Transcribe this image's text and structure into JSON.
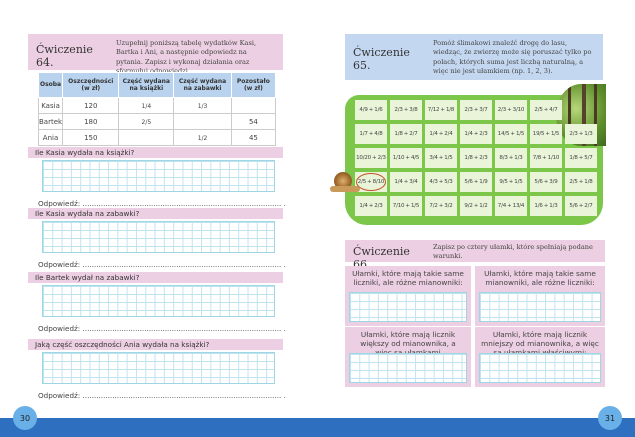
{
  "left": {
    "exercise": {
      "title": "Ćwiczenie 64.",
      "text": "Uzupełnij poniższą tabelę wydatków Kasi, Bartka i Ani, a następnie odpowiedz na pytania. Zapisz i wykonaj działania oraz sformułuj odpowiedzi."
    },
    "table": {
      "headers": [
        "Osoba",
        "Oszczędności (w zł)",
        "Część wydana na książki",
        "Część wydana na zabawki",
        "Pozostało (w zł)"
      ],
      "rows": [
        [
          "Kasia",
          "120",
          "1/4",
          "1/3",
          ""
        ],
        [
          "Bartek",
          "180",
          "2/5",
          "",
          "54"
        ],
        [
          "Ania",
          "150",
          "",
          "1/2",
          "45"
        ]
      ]
    },
    "questions": [
      "Ile Kasia wydała na książki?",
      "Ile Kasia wydała na zabawki?",
      "Ile Bartek wydał na zabawki?",
      "Jaką część oszczędności Ania wydała na książki?"
    ],
    "answer_label": "Odpowiedź: ....................................................................................... .",
    "page_number": "30"
  },
  "right": {
    "exercise65": {
      "title": "Ćwiczenie 65.",
      "text": "Pomóż ślimakowi znaleźć drogę do lasu, wiedząc, że zwierzę może się poruszać tylko po polach, których suma jest liczbą naturalną, a więc nie jest ułamkiem (np. 1, 2, 3)."
    },
    "maze": [
      [
        [
          "4/9",
          "1/6"
        ],
        [
          "2/3",
          "3/8"
        ],
        [
          "7/12",
          "1/8"
        ],
        [
          "2/3",
          "3/7"
        ],
        [
          "2/3",
          "3/10"
        ],
        [
          "2/5",
          "4/7"
        ]
      ],
      [
        [
          "1/7",
          "4/8"
        ],
        [
          "1/8",
          "2/7"
        ],
        [
          "1/4",
          "2/4"
        ],
        [
          "1/4",
          "2/3"
        ],
        [
          "14/5",
          "1/5"
        ],
        [
          "19/5",
          "1/5"
        ],
        [
          "2/3",
          "1/3"
        ]
      ],
      [
        [
          "10/20",
          "2/3"
        ],
        [
          "1/10",
          "4/5"
        ],
        [
          "3/4",
          "1/5"
        ],
        [
          "1/8",
          "2/3"
        ],
        [
          "8/3",
          "1/3"
        ],
        [
          "7/8",
          "1/10"
        ],
        [
          "1/8",
          "5/7"
        ]
      ],
      [
        [
          "2/5",
          "8/10"
        ],
        [
          "1/4",
          "3/4"
        ],
        [
          "4/3",
          "5/3"
        ],
        [
          "5/6",
          "1/9"
        ],
        [
          "9/5",
          "1/5"
        ],
        [
          "5/6",
          "3/9"
        ],
        [
          "2/5",
          "1/8"
        ]
      ],
      [
        [
          "1/4",
          "2/3"
        ],
        [
          "7/10",
          "1/5"
        ],
        [
          "7/2",
          "3/2"
        ],
        [
          "9/2",
          "1/2"
        ],
        [
          "7/4",
          "13/4"
        ],
        [
          "1/6",
          "1/3"
        ],
        [
          "5/6",
          "2/7"
        ]
      ]
    ],
    "exercise66": {
      "title": "Ćwiczenie 66.",
      "text": "Zapisz po cztery ułamki, które spełniają podane warunki."
    },
    "boxes": [
      "Ułamki, które mają takie same liczniki, ale różne mianowniki:",
      "Ułamki, które mają takie same mianowniki, ale różne liczniki:",
      "Ułamki, które mają licznik większy od mianownika, a więc są ułamkami niewłaściwymi:",
      "Ułamki, które mają licznik mniejszy od mianownika, a więc są ułamkami właściwymi:"
    ],
    "page_number": "31"
  },
  "colors": {
    "pink": "#eccfe2",
    "blue_header": "#c4d7f0",
    "green": "#7cc64a",
    "footer": "#2f6fc0",
    "circle": "#c0562a"
  }
}
